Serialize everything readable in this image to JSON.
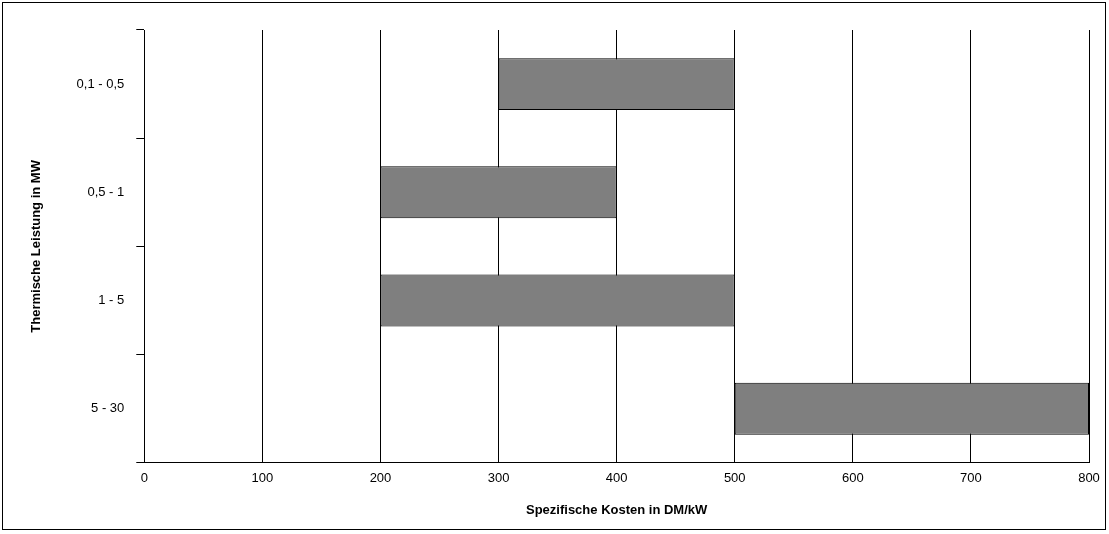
{
  "chart_data": {
    "type": "bar",
    "orientation": "horizontal",
    "xlabel": "Spezifische Kosten in DM/kW",
    "ylabel": "Thermische Leistung in MW",
    "categories": [
      "0,1 - 0,5",
      "0,5 - 1",
      "1 - 5",
      "5 - 30"
    ],
    "values": [
      200,
      200,
      300,
      300
    ],
    "base": [
      300,
      200,
      200,
      500
    ],
    "color": "#7f7f7f",
    "xlim": [
      0,
      800
    ],
    "xticks": [
      0,
      100,
      200,
      300,
      400,
      500,
      600,
      700,
      800
    ],
    "grid": "x"
  }
}
